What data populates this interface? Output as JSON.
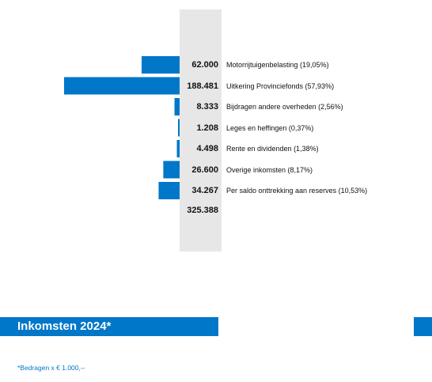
{
  "colors": {
    "accent": "#0077c8",
    "band": "#e7e7e7"
  },
  "chart_data": {
    "type": "bar",
    "orientation": "horizontal",
    "title": "Inkomsten 2024*",
    "categories": [
      "Motorrijtuigenbelasting (19,05%)",
      "Uitkering Provinciefonds (57,93%)",
      "Bijdragen andere overheden (2,56%)",
      "Leges en heffingen (0,37%)",
      "Rente en dividenden (1,38%)",
      "Overige inkomsten (8,17%)",
      "Per saldo onttrekking aan reserves (10,53%)"
    ],
    "values": [
      62000,
      188481,
      8333,
      1208,
      4498,
      26600,
      34267
    ],
    "value_labels": [
      "62.000",
      "188.481",
      "8.333",
      "1.208",
      "4.498",
      "26.600",
      "34.267"
    ],
    "total_label": "325.388",
    "footnote": "*Bedragen x € 1.000,--"
  }
}
